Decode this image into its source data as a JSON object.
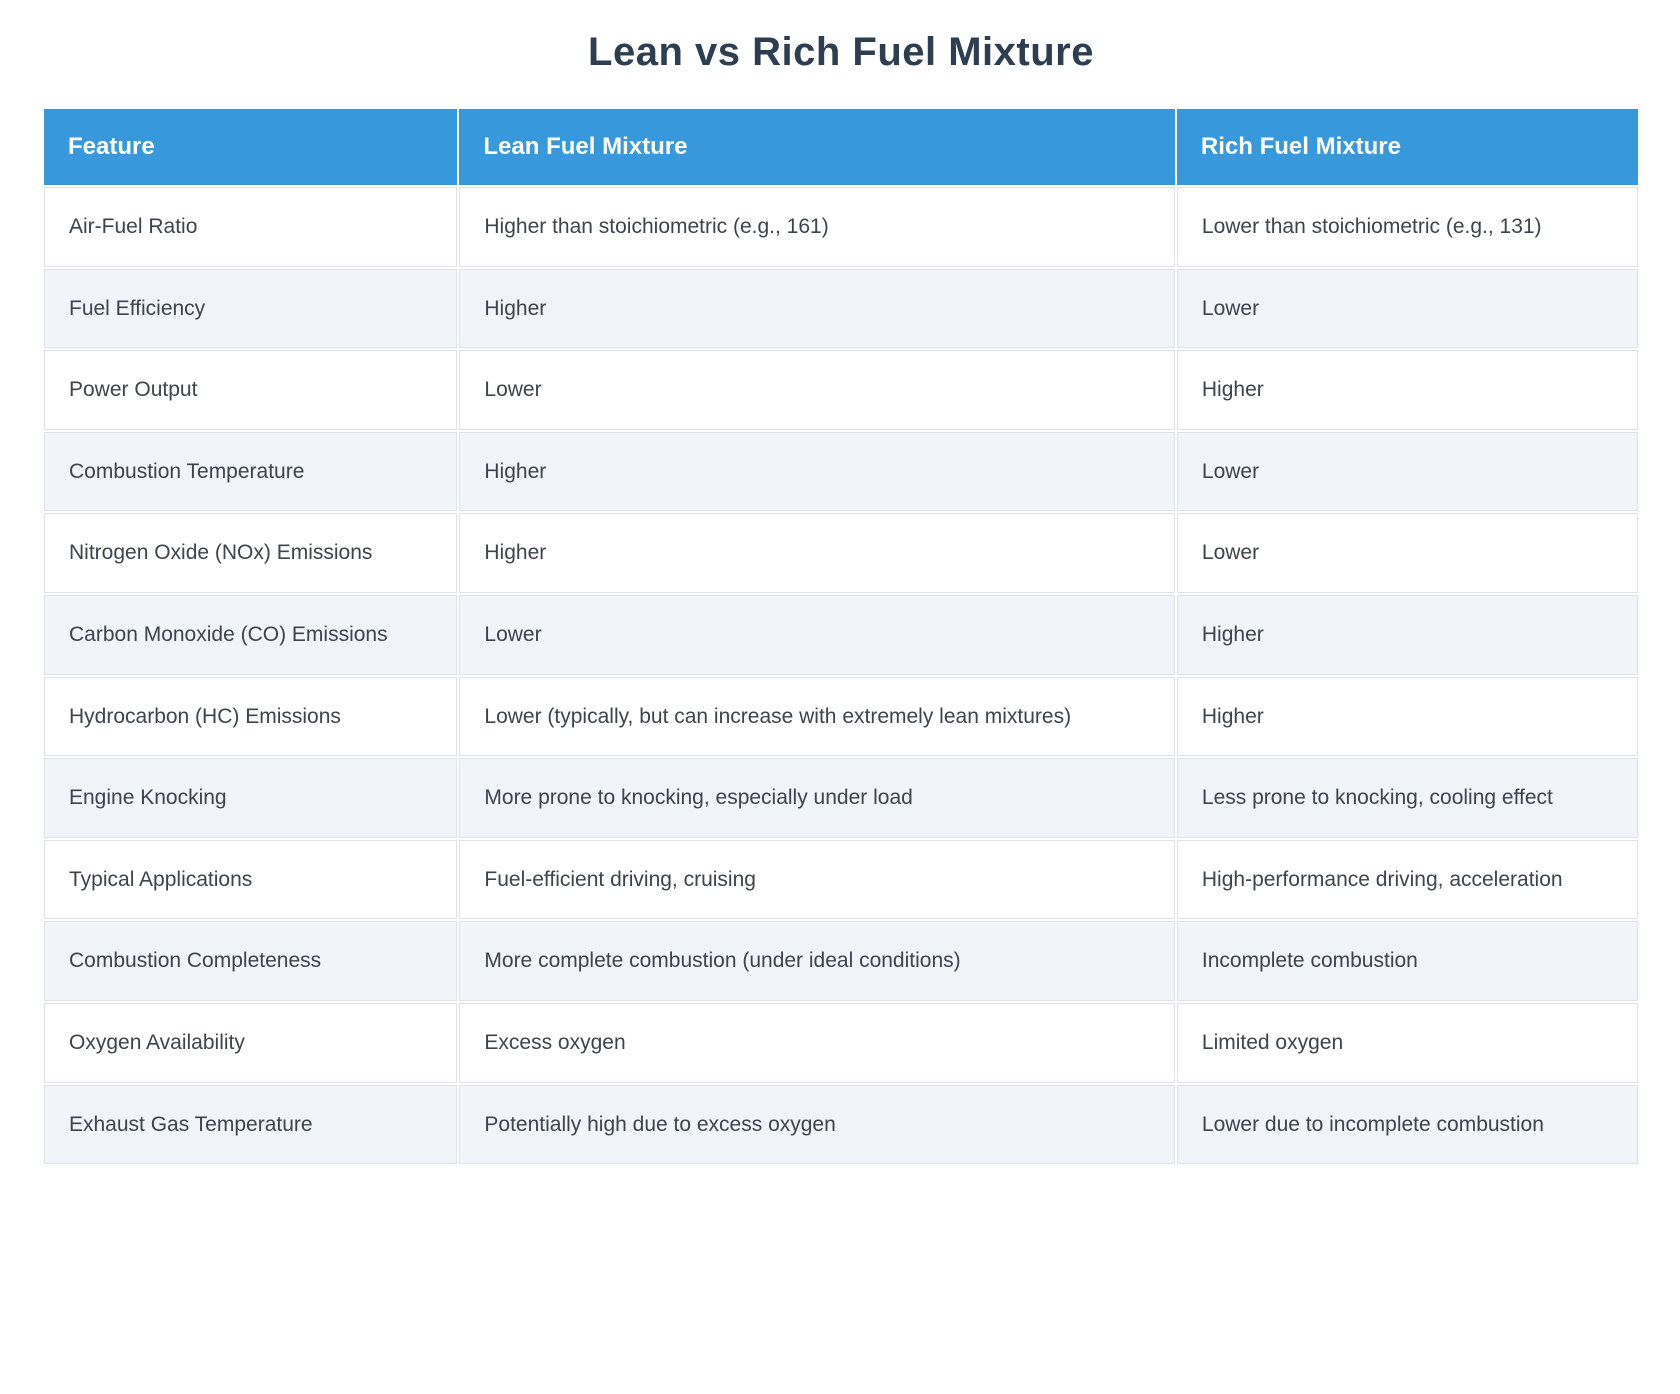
{
  "title": "Lean vs Rich Fuel Mixture",
  "table": {
    "columns": [
      "Feature",
      "Lean Fuel Mixture",
      "Rich Fuel Mixture"
    ],
    "rows": [
      {
        "feature": "Air-Fuel Ratio",
        "lean": "Higher than stoichiometric (e.g., 161)",
        "rich": "Lower than stoichiometric (e.g., 131)"
      },
      {
        "feature": "Fuel Efficiency",
        "lean": "Higher",
        "rich": "Lower"
      },
      {
        "feature": "Power Output",
        "lean": "Lower",
        "rich": "Higher"
      },
      {
        "feature": "Combustion Temperature",
        "lean": "Higher",
        "rich": "Lower"
      },
      {
        "feature": "Nitrogen Oxide (NOx) Emissions",
        "lean": "Higher",
        "rich": "Lower"
      },
      {
        "feature": "Carbon Monoxide (CO) Emissions",
        "lean": "Lower",
        "rich": "Higher"
      },
      {
        "feature": "Hydrocarbon (HC) Emissions",
        "lean": "Lower (typically, but can increase with extremely lean mixtures)",
        "rich": "Higher"
      },
      {
        "feature": "Engine Knocking",
        "lean": "More prone to knocking, especially under load",
        "rich": "Less prone to knocking, cooling effect"
      },
      {
        "feature": "Typical Applications",
        "lean": "Fuel-efficient driving, cruising",
        "rich": "High-performance driving, acceleration"
      },
      {
        "feature": "Combustion Completeness",
        "lean": "More complete combustion (under ideal conditions)",
        "rich": "Incomplete combustion"
      },
      {
        "feature": "Oxygen Availability",
        "lean": "Excess oxygen",
        "rich": "Limited oxygen"
      },
      {
        "feature": "Exhaust Gas Temperature",
        "lean": "Potentially high due to excess oxygen",
        "rich": "Lower due to incomplete combustion"
      }
    ]
  },
  "colors": {
    "header_bg": "#3798db",
    "header_text": "#ffffff",
    "title_text": "#2c3e50",
    "body_text": "#3d444b",
    "row_alt_bg": "#f1f4f8",
    "row_bg": "#ffffff",
    "cell_border": "#dfe2e7"
  }
}
